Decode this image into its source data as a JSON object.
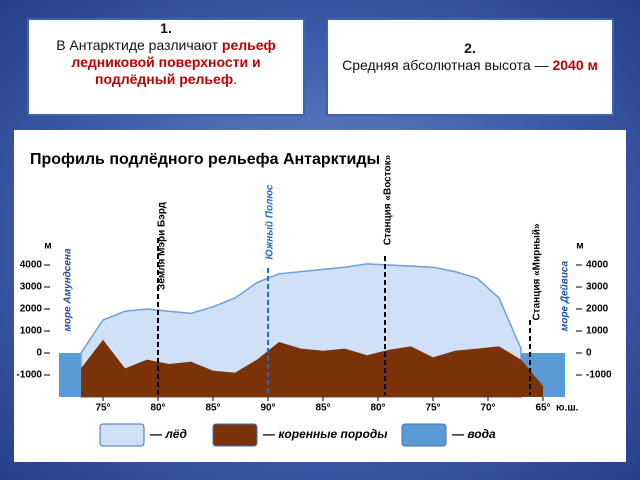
{
  "boxes": [
    {
      "number": "1.",
      "text": "В Антарктиде различают ",
      "highlight": "рельеф ледниковой поверхности и подлёдный рельеф",
      "tail": "."
    },
    {
      "number": "2.",
      "text": "Средняя абсолютная высота — ",
      "highlight": "2040 м"
    }
  ],
  "chart_data": {
    "type": "area",
    "title": "Профиль подлёдного рельефа Антарктиды",
    "y_label": "м",
    "x_label": "ю.ш.",
    "x": [
      -4,
      -2,
      0,
      2,
      4,
      6,
      8,
      10,
      12,
      14,
      16,
      18,
      20,
      22,
      24,
      26,
      28,
      30,
      32,
      34,
      36,
      38,
      40,
      42
    ],
    "xlim": [
      -4,
      42
    ],
    "xticks": [
      {
        "value": 0,
        "label": "75°"
      },
      {
        "value": 5,
        "label": "80°"
      },
      {
        "value": 10,
        "label": "85°"
      },
      {
        "value": 15,
        "label": "90°"
      },
      {
        "value": 20,
        "label": "85°"
      },
      {
        "value": 25,
        "label": "80°"
      },
      {
        "value": 30,
        "label": "75°"
      },
      {
        "value": 35,
        "label": "70°"
      },
      {
        "value": 40,
        "label": "65°"
      }
    ],
    "ylim": [
      -2000,
      4500
    ],
    "yticks": [
      -1000,
      0,
      1000,
      2000,
      3000,
      4000
    ],
    "series": [
      {
        "name": "— вода",
        "color": "#5b9bd5",
        "values": [
          0,
          0,
          0,
          0,
          0,
          0,
          0,
          0,
          0,
          0,
          0,
          0,
          0,
          0,
          0,
          0,
          0,
          0,
          0,
          0,
          0,
          0,
          0,
          0
        ]
      },
      {
        "name": "— лёд",
        "color": "#cfe0f7",
        "values": [
          null,
          0,
          1500,
          1900,
          2000,
          1900,
          1800,
          2100,
          2500,
          3200,
          3600,
          3700,
          3800,
          3900,
          4050,
          4000,
          3950,
          3900,
          3700,
          3400,
          2500,
          200,
          null,
          null
        ]
      },
      {
        "name": "— коренные породы",
        "color": "#7a3209",
        "values": [
          null,
          -700,
          600,
          -700,
          -300,
          -500,
          -400,
          -800,
          -900,
          -300,
          500,
          200,
          100,
          200,
          -100,
          150,
          300,
          -200,
          100,
          200,
          300,
          -300,
          -1500,
          null
        ]
      }
    ],
    "annotations": [
      "море Амундсена",
      "Земля Мэри Бэрд",
      "Южный Полюс",
      "Станция «Восток»",
      "Станция «Мирный»",
      "море Дейвиса"
    ]
  }
}
